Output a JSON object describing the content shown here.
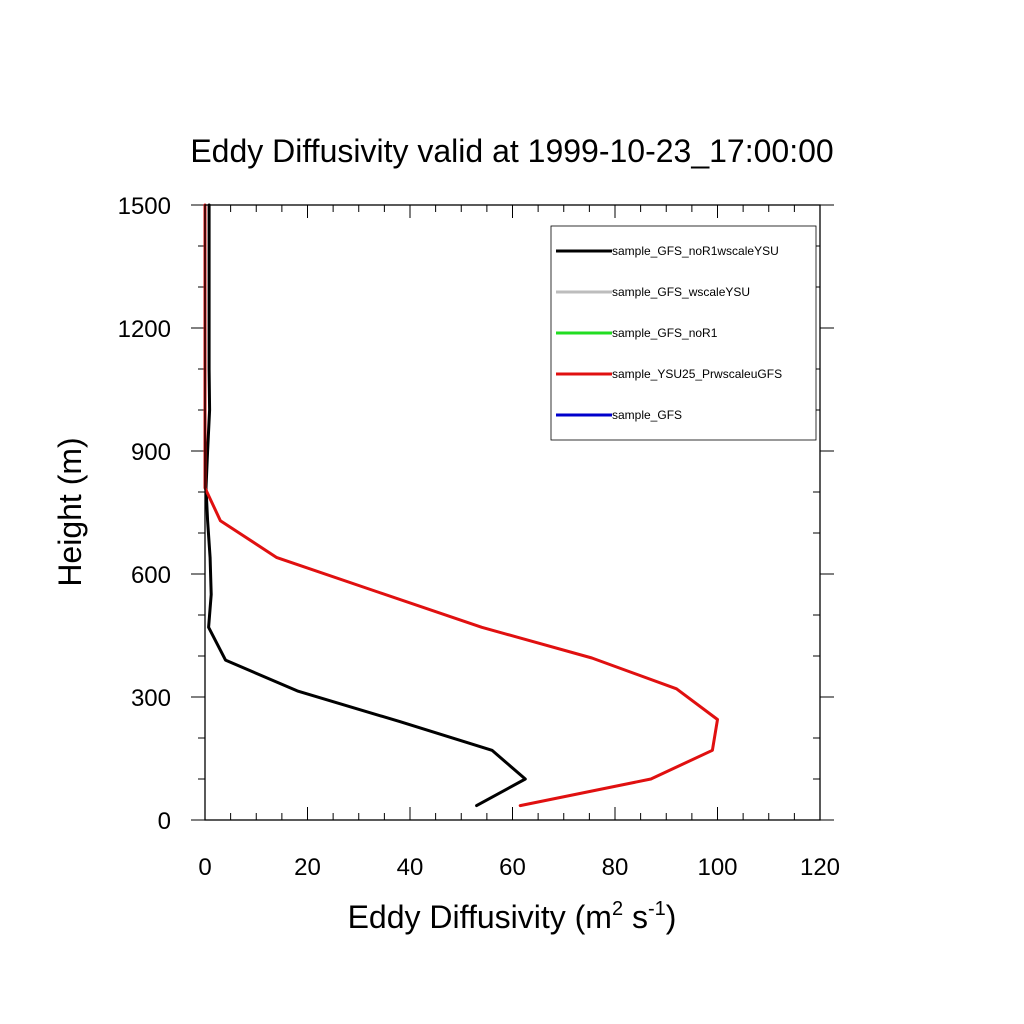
{
  "chart_data": {
    "type": "line",
    "title": "Eddy Diffusivity valid at 1999-10-23_17:00:00",
    "xlabel": {
      "main": "Eddy Diffusivity (m",
      "sup1": "2",
      "mid": " s",
      "sup2": "-1",
      "end": ")"
    },
    "ylabel": "Height (m)",
    "xlim": [
      0,
      120
    ],
    "ylim": [
      0,
      1500
    ],
    "x_ticks": [
      "0",
      "20",
      "40",
      "60",
      "80",
      "100",
      "120"
    ],
    "y_ticks": [
      "0",
      "300",
      "600",
      "900",
      "1200",
      "1500"
    ],
    "grid": false,
    "legend_position": "top-right",
    "series": [
      {
        "name": "sample_GFS_noR1wscaleYSU",
        "color": "#000000",
        "points": [
          [
            53,
            35
          ],
          [
            62.5,
            100
          ],
          [
            56,
            170
          ],
          [
            38,
            240
          ],
          [
            18,
            315
          ],
          [
            4,
            390
          ],
          [
            0.7,
            470
          ],
          [
            1.2,
            550
          ],
          [
            1,
            640
          ],
          [
            0.5,
            730
          ],
          [
            0.2,
            810
          ],
          [
            0.5,
            900
          ],
          [
            0.9,
            1000
          ],
          [
            0.8,
            1100
          ],
          [
            0.8,
            1200
          ],
          [
            0.8,
            1300
          ],
          [
            0.8,
            1400
          ],
          [
            0.8,
            1500
          ]
        ]
      },
      {
        "name": "sample_GFS_wscaleYSU",
        "color": "#bdbdbd",
        "points": []
      },
      {
        "name": "sample_GFS_noR1",
        "color": "#22dd22",
        "points": []
      },
      {
        "name": "sample_YSU25_PrwscaleuGFS",
        "color": "#e01010",
        "points": [
          [
            61.5,
            35
          ],
          [
            87,
            100
          ],
          [
            99,
            170
          ],
          [
            100,
            245
          ],
          [
            92,
            320
          ],
          [
            75.5,
            395
          ],
          [
            54,
            470
          ],
          [
            34,
            555
          ],
          [
            14,
            640
          ],
          [
            3,
            730
          ],
          [
            0,
            810
          ],
          [
            0,
            900
          ],
          [
            0,
            1000
          ],
          [
            0,
            1100
          ],
          [
            0,
            1200
          ],
          [
            0,
            1300
          ],
          [
            0,
            1400
          ],
          [
            0,
            1500
          ]
        ]
      },
      {
        "name": "sample_GFS",
        "color": "#0000cc",
        "points": []
      }
    ]
  }
}
